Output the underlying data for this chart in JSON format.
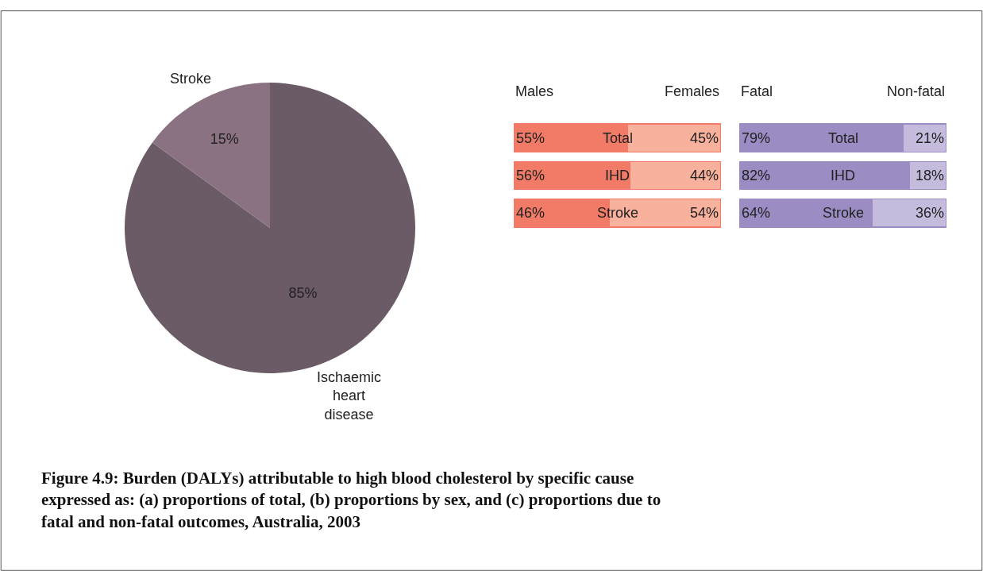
{
  "chart_data": [
    {
      "type": "pie",
      "categories": [
        "Ischaemic heart disease",
        "Stroke"
      ],
      "values": [
        85,
        15
      ],
      "colors": [
        "#6b5b67",
        "#8a7282"
      ],
      "value_labels": [
        "85%",
        "15%"
      ],
      "annotations": [
        "Figure 4.9: Burden (DALYs) attributable to high blood cholesterol by specific cause expressed as: (a) proportions of total, (b) proportions by sex, and (c) proportions due to fatal and non-fatal outcomes, Australia, 2003"
      ]
    },
    {
      "type": "bar",
      "orientation": "horizontal",
      "stacked": true,
      "categories": [
        "Total",
        "IHD",
        "Stroke"
      ],
      "xlim": [
        0,
        100
      ],
      "series": [
        {
          "name": "Males",
          "color": "#f27b67",
          "values": [
            55,
            56,
            46
          ],
          "value_labels": [
            "55%",
            "56%",
            "46%"
          ]
        },
        {
          "name": "Females",
          "color": "#f7b19c",
          "values": [
            45,
            44,
            54
          ],
          "value_labels": [
            "45%",
            "44%",
            "54%"
          ]
        }
      ]
    },
    {
      "type": "bar",
      "orientation": "horizontal",
      "stacked": true,
      "categories": [
        "Total",
        "IHD",
        "Stroke"
      ],
      "xlim": [
        0,
        100
      ],
      "series": [
        {
          "name": "Fatal",
          "color": "#9b8dc3",
          "values": [
            79,
            82,
            64
          ],
          "value_labels": [
            "79%",
            "82%",
            "64%"
          ]
        },
        {
          "name": "Non-fatal",
          "color": "#c5bcdd",
          "values": [
            21,
            18,
            36
          ],
          "value_labels": [
            "21%",
            "18%",
            "36%"
          ]
        }
      ]
    }
  ]
}
